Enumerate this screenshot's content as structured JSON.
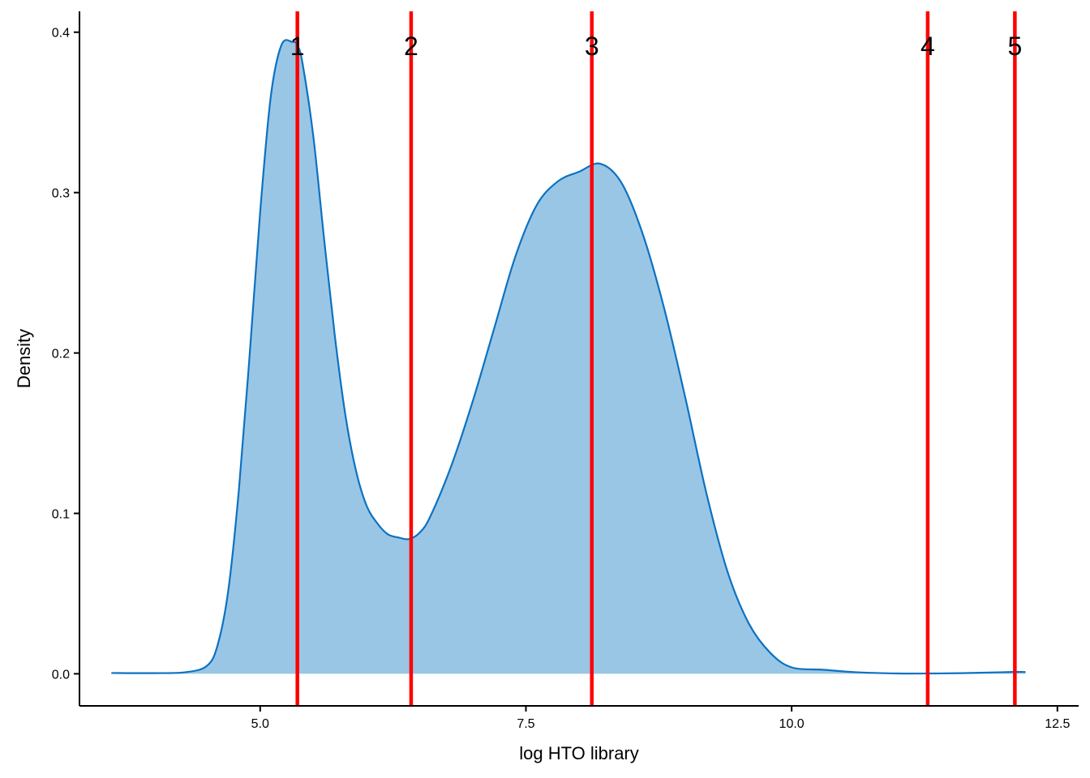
{
  "chart_data": {
    "type": "area",
    "title": "",
    "xlabel": "log HTO library",
    "ylabel": "Density",
    "xlim": [
      3.3,
      12.7
    ],
    "ylim": [
      -0.02,
      0.413
    ],
    "x_ticks": [
      5.0,
      7.5,
      10.0,
      12.5
    ],
    "x_tick_labels": [
      "5.0",
      "7.5",
      "10.0",
      "12.5"
    ],
    "y_ticks": [
      0.0,
      0.1,
      0.2,
      0.3,
      0.4
    ],
    "y_tick_labels": [
      "0.0",
      "0.1",
      "0.2",
      "0.3",
      "0.4"
    ],
    "grid": false,
    "density": {
      "fill_color": "#9AC6E5",
      "line_color": "#0B72C2",
      "x": [
        3.6,
        4.0,
        4.3,
        4.5,
        4.6,
        4.7,
        4.8,
        4.9,
        5.0,
        5.1,
        5.2,
        5.3,
        5.35,
        5.4,
        5.5,
        5.6,
        5.7,
        5.8,
        5.9,
        6.0,
        6.1,
        6.2,
        6.3,
        6.4,
        6.5,
        6.6,
        6.8,
        7.0,
        7.2,
        7.4,
        7.6,
        7.8,
        8.0,
        8.2,
        8.4,
        8.6,
        8.8,
        9.0,
        9.2,
        9.4,
        9.6,
        9.8,
        10.0,
        10.3,
        10.6,
        11.0,
        11.3,
        11.6,
        12.0,
        12.1,
        12.2
      ],
      "y": [
        0.0005,
        0.0004,
        0.001,
        0.005,
        0.018,
        0.052,
        0.115,
        0.198,
        0.288,
        0.36,
        0.392,
        0.394,
        0.392,
        0.38,
        0.335,
        0.272,
        0.212,
        0.162,
        0.127,
        0.105,
        0.094,
        0.087,
        0.085,
        0.084,
        0.088,
        0.098,
        0.13,
        0.17,
        0.215,
        0.26,
        0.292,
        0.307,
        0.313,
        0.318,
        0.306,
        0.274,
        0.228,
        0.172,
        0.112,
        0.063,
        0.031,
        0.013,
        0.004,
        0.0025,
        0.001,
        0.0002,
        0.0002,
        0.0004,
        0.001,
        0.0012,
        0.0011
      ]
    },
    "vlines": {
      "color": "#FF0000",
      "positions": [
        5.35,
        6.42,
        8.12,
        11.28,
        12.1
      ],
      "labels": [
        "1",
        "2",
        "3",
        "4",
        "5"
      ]
    }
  }
}
